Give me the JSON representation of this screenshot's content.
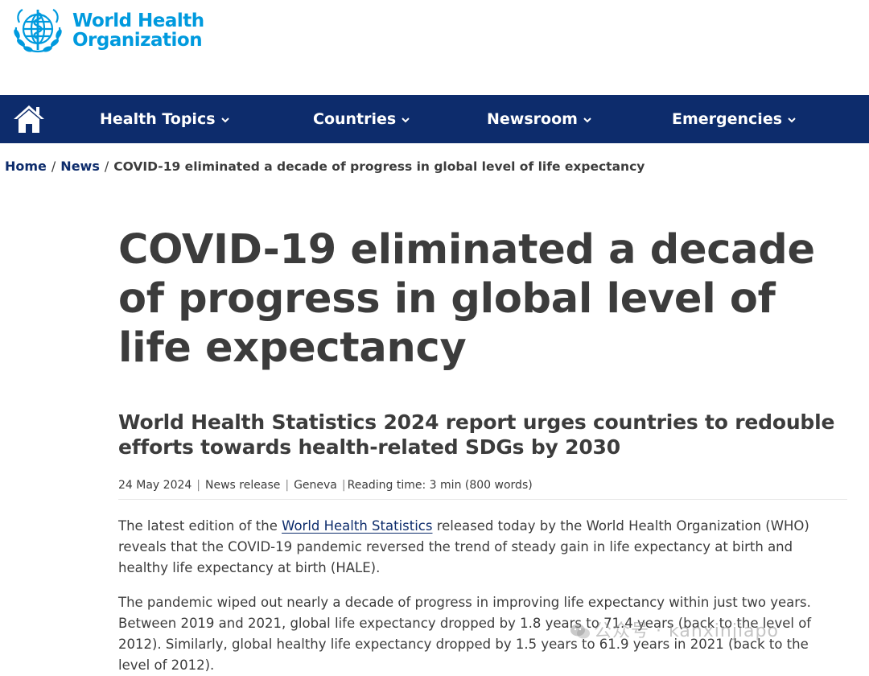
{
  "logo": {
    "line1": "World Health",
    "line2": "Organization",
    "emblem_icon": "who-emblem-icon",
    "color": "#009ADE"
  },
  "nav": {
    "home_icon": "home-icon",
    "background": "#0D2C6C",
    "items": [
      {
        "label": "Health Topics"
      },
      {
        "label": "Countries"
      },
      {
        "label": "Newsroom"
      },
      {
        "label": "Emergencies"
      }
    ]
  },
  "breadcrumb": {
    "home": "Home",
    "news": "News",
    "current": "COVID-19 eliminated a decade of progress in global level of life expectancy",
    "separator": "/"
  },
  "article": {
    "title": "COVID-19 eliminated a decade of progress in global level of life expectancy",
    "subtitle": "World Health Statistics 2024 report urges countries to redouble efforts towards health-related SDGs by 2030",
    "meta": {
      "date": "24 May 2024",
      "type": "News release",
      "location": "Geneva",
      "reading_time": "Reading time: 3 min (800 words)"
    },
    "p1_before": "The latest edition of the ",
    "p1_link": "World Health Statistics",
    "p1_after": " released today by the World Health Organization (WHO) reveals that the COVID-19 pandemic reversed the trend of steady gain in life expectancy at birth and healthy life expectancy at birth (HALE).",
    "p2": "The pandemic wiped out nearly a decade of progress in improving life expectancy within just two years. Between 2019 and 2021, global life expectancy dropped by 1.8 years to 71.4 years (back to the level of 2012). Similarly, global healthy life expectancy dropped by 1.5 years to 61.9 years in 2021 (back to the level of 2012)."
  },
  "watermark": {
    "text": "公众号 · kanxinjiapo",
    "icon": "wechat-icon"
  }
}
